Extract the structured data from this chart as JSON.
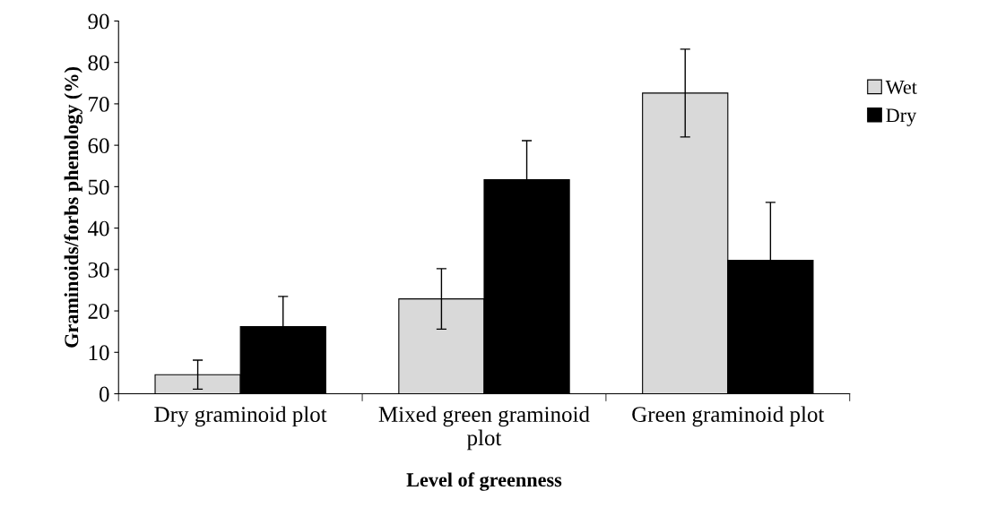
{
  "chart_data": {
    "type": "bar",
    "xlabel": "Level of greenness",
    "ylabel": "Graminoids/forbs phenology (%)",
    "categories": [
      "Dry graminoid plot",
      "Mixed green graminoid plot",
      "Green graminoid plot"
    ],
    "series": [
      {
        "name": "Wet",
        "color": "#d9d9d9",
        "values": [
          4.6,
          22.9,
          72.6
        ],
        "errors": [
          3.5,
          7.3,
          10.6
        ]
      },
      {
        "name": "Dry",
        "color": "#000000",
        "values": [
          16.2,
          51.7,
          32.2
        ],
        "errors": [
          7.3,
          9.4,
          14.0
        ]
      }
    ],
    "ylim": [
      0,
      90
    ],
    "yticks": [
      0,
      10,
      20,
      30,
      40,
      50,
      60,
      70,
      80,
      90
    ],
    "grid": false,
    "legend": "right"
  }
}
